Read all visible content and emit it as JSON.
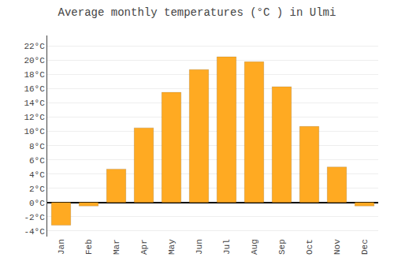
{
  "chart_data": {
    "type": "bar",
    "title": "Average monthly temperatures (°C ) in Ulmi",
    "categories": [
      "Jan",
      "Feb",
      "Mar",
      "Apr",
      "May",
      "Jun",
      "Jul",
      "Aug",
      "Sep",
      "Oct",
      "Nov",
      "Dec"
    ],
    "values": [
      -3.2,
      -0.5,
      4.7,
      10.5,
      15.5,
      18.7,
      20.5,
      19.8,
      16.3,
      10.7,
      5.0,
      -0.5
    ],
    "color": "#FFAA22",
    "ylim": [
      -4.8,
      23.5
    ],
    "yticks": [
      {
        "value": 22,
        "label": "22°C"
      },
      {
        "value": 20,
        "label": "20°C"
      },
      {
        "value": 18,
        "label": "18°C"
      },
      {
        "value": 16,
        "label": "16°C"
      },
      {
        "value": 14,
        "label": "14°C"
      },
      {
        "value": 12,
        "label": "12°C"
      },
      {
        "value": 10,
        "label": "10°C"
      },
      {
        "value": 8,
        "label": "8°C"
      },
      {
        "value": 6,
        "label": "6°C"
      },
      {
        "value": 4,
        "label": "4°C"
      },
      {
        "value": 2,
        "label": "2°C"
      },
      {
        "value": 0,
        "label": "0°C"
      },
      {
        "value": -2,
        "label": "-2°C"
      },
      {
        "value": -4,
        "label": "-4°C"
      }
    ],
    "grid": true
  }
}
